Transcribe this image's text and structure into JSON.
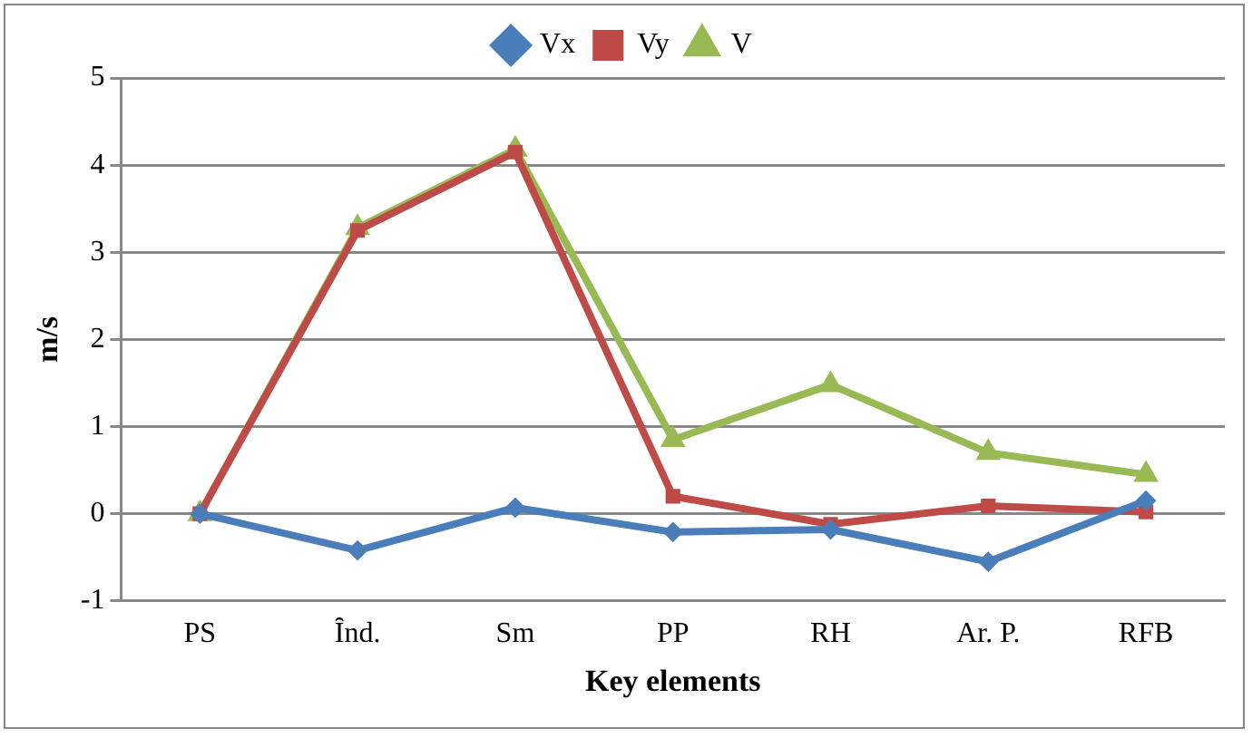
{
  "chart_data": {
    "type": "line",
    "xlabel": "Key elements",
    "ylabel": "m/s",
    "categories": [
      "PS",
      "Ȋnd.",
      "Sm",
      "PP",
      "RH",
      "Ar. P.",
      "RFB"
    ],
    "series": [
      {
        "name": "Vx",
        "color": "#4a7ebb",
        "marker": "diamond",
        "values": [
          0,
          -0.42,
          0.07,
          -0.21,
          -0.18,
          -0.55,
          0.15
        ]
      },
      {
        "name": "Vy",
        "color": "#be4b48",
        "marker": "square",
        "values": [
          0,
          3.25,
          4.15,
          0.2,
          -0.12,
          0.09,
          0.02
        ]
      },
      {
        "name": "V",
        "color": "#98b954",
        "marker": "triangle",
        "values": [
          0,
          3.28,
          4.18,
          0.85,
          1.48,
          0.7,
          0.45
        ]
      }
    ],
    "ylim": [
      -1,
      5
    ],
    "yticks": [
      -1,
      0,
      1,
      2,
      3,
      4,
      5
    ],
    "grid": "y",
    "legend": "top"
  }
}
